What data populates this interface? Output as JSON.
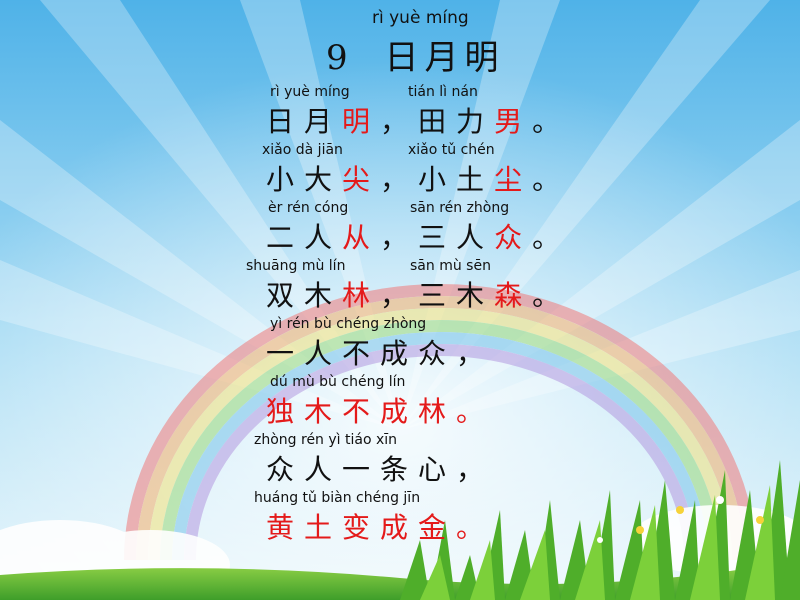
{
  "title": {
    "pinyin": "rì yuè míng",
    "number": "9",
    "text": "日月明"
  },
  "lines": [
    {
      "pinyin_a": "rì  yuè míng",
      "pinyin_b": "tián   lì   nán",
      "a_black": "日月",
      "a_red": "明",
      "sep": "，",
      "b_black": "田力",
      "b_red": "男",
      "end": "。"
    },
    {
      "pinyin_a": "xiǎo dà jiān",
      "pinyin_b": "xiǎo tǔ chén",
      "a_black": "小大",
      "a_red": "尖",
      "sep": "，",
      "b_black": "小土",
      "b_red": "尘",
      "end": "。"
    },
    {
      "pinyin_a": "èr rén cóng",
      "pinyin_b": "sān rén zhòng",
      "a_black": "二人",
      "a_red": "从",
      "sep": "，",
      "b_black": "三人",
      "b_red": "众",
      "end": "。"
    },
    {
      "pinyin_a": "shuāng mù lín",
      "pinyin_b": "sān mù sēn",
      "a_black": "双木",
      "a_red": "林",
      "sep": "，",
      "b_black": "三木",
      "b_red": "森",
      "end": "。"
    },
    {
      "pinyin": "yì rén bù chéng zhòng",
      "text": "一人不成众，",
      "color": "black"
    },
    {
      "pinyin": "dú mù bù chéng lín",
      "text": "独木不成林。",
      "color": "red"
    },
    {
      "pinyin": "zhòng rén yì tiáo xīn",
      "text": "众人一条心，",
      "color": "black"
    },
    {
      "pinyin": "huáng tǔ biàn chéng jīn",
      "text": "黄土变成金。",
      "color": "red"
    }
  ],
  "colors": {
    "red": "#e41a1a",
    "text": "#111111",
    "sky": "#7cc8ee",
    "grass": "#6cc43a"
  }
}
